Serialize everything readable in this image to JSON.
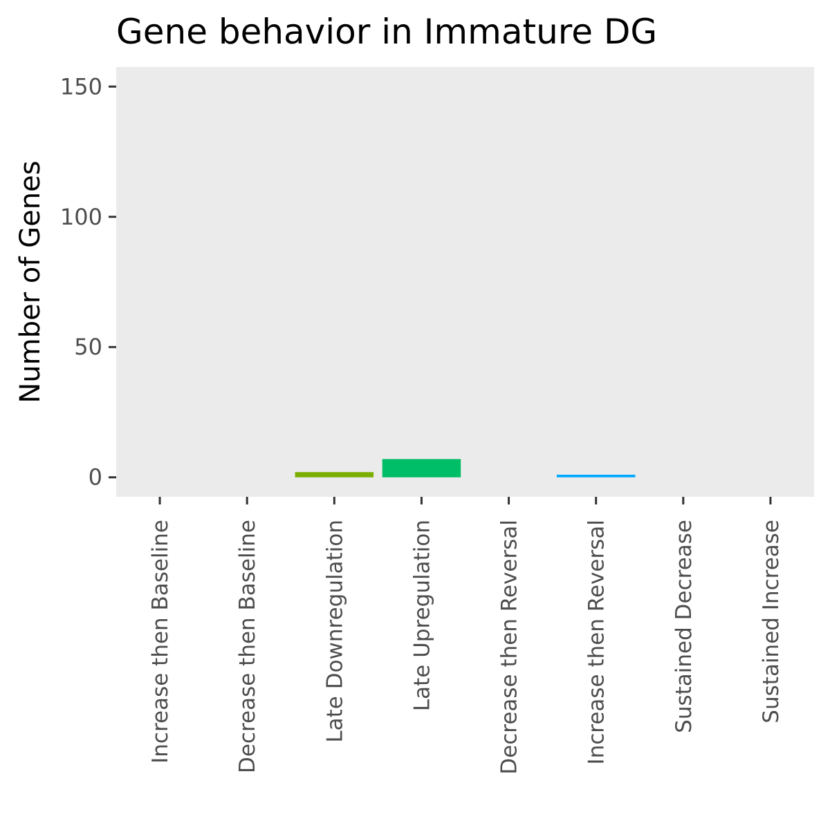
{
  "chart_data": {
    "type": "bar",
    "title": "Gene behavior in Immature DG",
    "xlabel": "",
    "ylabel": "Number of Genes",
    "categories": [
      "Increase then Baseline",
      "Decrease then Baseline",
      "Late Downregulation",
      "Late Upregulation",
      "Decrease then Reversal",
      "Increase then Reversal",
      "Sustained Decrease",
      "Sustained Increase"
    ],
    "values": [
      0,
      0,
      2,
      7,
      0,
      1,
      0,
      0
    ],
    "colors": [
      "#F8766D",
      "#CD9600",
      "#7CAE00",
      "#00BE67",
      "#00BFC4",
      "#00A9FF",
      "#C77CFF",
      "#FF61CC"
    ],
    "ylim": [
      -7.5,
      157.5
    ],
    "yticks": [
      0,
      50,
      100,
      150
    ],
    "panel_background": "#EBEBEB",
    "grid": false,
    "legend": "none"
  }
}
